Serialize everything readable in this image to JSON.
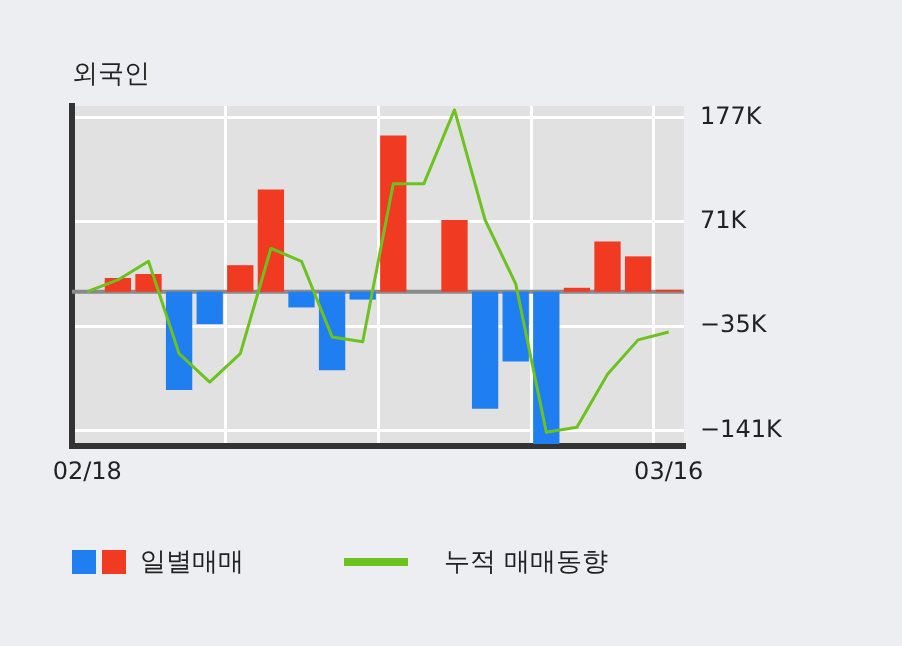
{
  "chart_data": {
    "type": "bar",
    "title": "외국인",
    "categories": [
      "02/18",
      null,
      null,
      null,
      null,
      null,
      null,
      null,
      null,
      null,
      null,
      null,
      null,
      null,
      null,
      null,
      null,
      null,
      null,
      "03/16"
    ],
    "series": [
      {
        "name": "일별매매",
        "colors": [
          "#f03a22",
          "#f03a22",
          "#f03a22",
          "#1f7ff0",
          "#1f7ff0",
          "#f03a22",
          "#f03a22",
          "#1f7ff0",
          "#1f7ff0",
          "#1f7ff0",
          "#f03a22",
          "#f03a22",
          "#f03a22",
          "#1f7ff0",
          "#1f7ff0",
          "#1f7ff0",
          "#f03a22",
          "#f03a22",
          "#f03a22",
          "#f03a22"
        ],
        "values": [
          0,
          14,
          18,
          -100,
          -33,
          27,
          104,
          -16,
          -80,
          -8,
          159,
          0,
          73,
          -119,
          -71,
          -155,
          4,
          51,
          36,
          2
        ]
      },
      {
        "name": "누적 매매동향",
        "type": "line",
        "color": "#6cc21e",
        "values": [
          0,
          12,
          31,
          -63,
          -92,
          -63,
          44,
          31,
          -46,
          -51,
          110,
          110,
          185,
          73,
          8,
          -143,
          -138,
          -84,
          -49,
          -41
        ]
      }
    ],
    "ylim": [
      -157,
      189
    ],
    "yticks": [
      {
        "value": 177,
        "label": "177K"
      },
      {
        "value": 71,
        "label": "71K"
      },
      {
        "value": -35,
        "label": "−35K"
      },
      {
        "value": -141,
        "label": "−141K"
      }
    ],
    "ref_lines": [
      {
        "axis": "y",
        "value": 0,
        "color": "#8a8a8a"
      }
    ],
    "grid": true,
    "legend": "bottom",
    "marker": "none",
    "line_style": "solid"
  }
}
